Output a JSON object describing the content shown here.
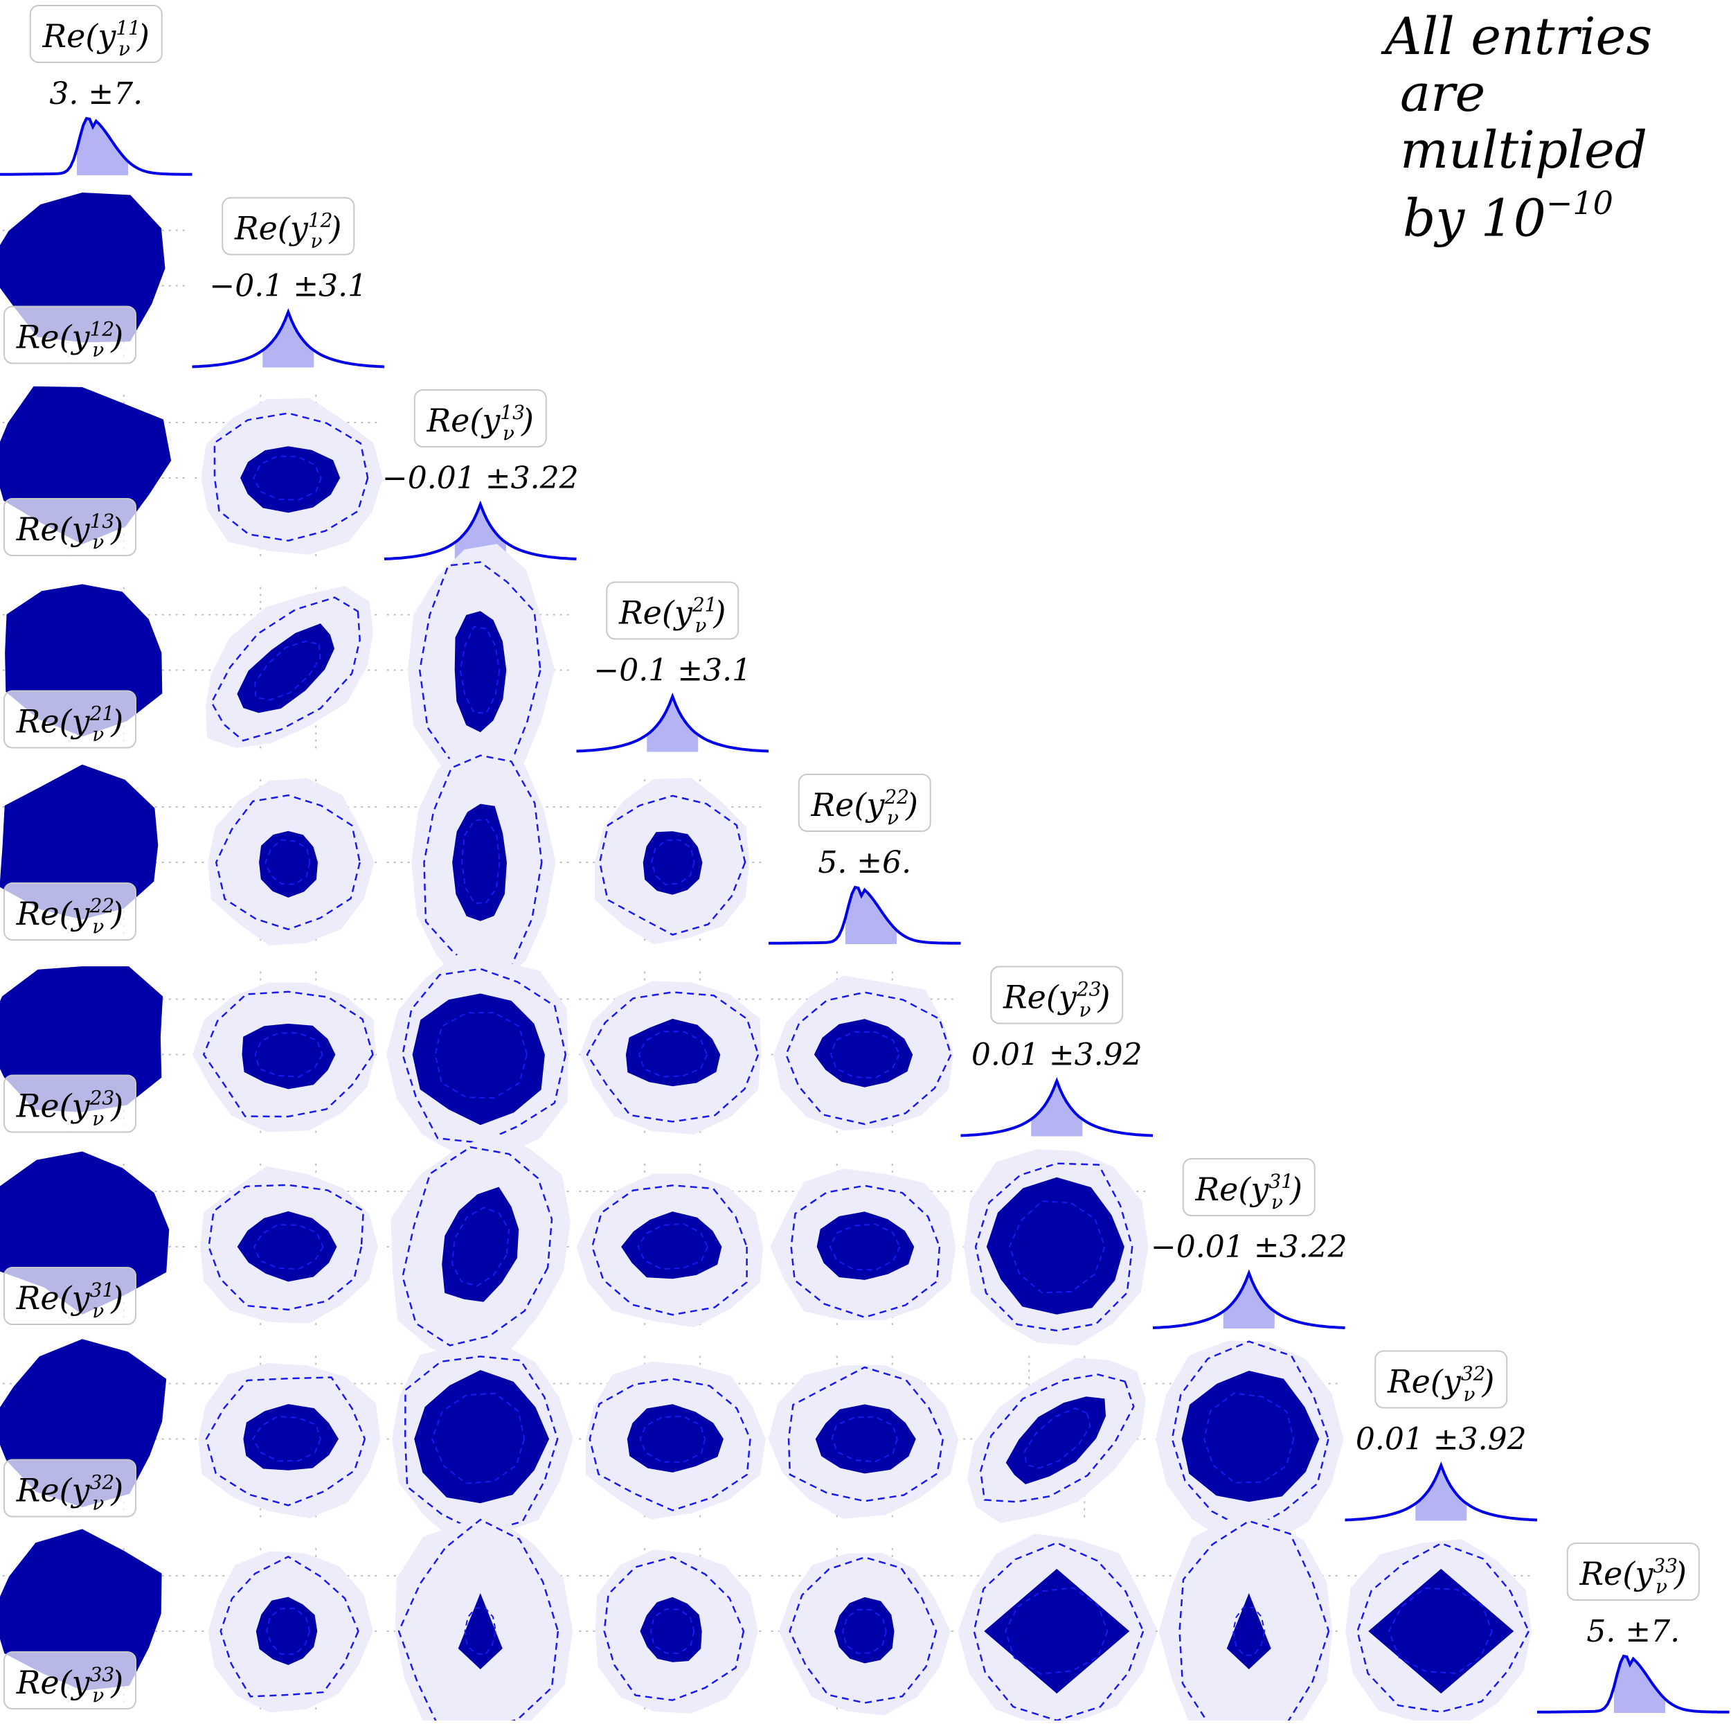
{
  "note": {
    "line1": "All entries",
    "line2": "are multipled",
    "line3_prefix": "by 10",
    "line3_exponent": "−10"
  },
  "chart_data": {
    "type": "corner_plot",
    "title": "",
    "parameters": [
      {
        "label": "Re(y_ν^11)",
        "sub": "ν",
        "sup": "11",
        "summary": "3. ±7.",
        "mean": 3,
        "sigma": 7,
        "skewed": true
      },
      {
        "label": "Re(y_ν^12)",
        "sub": "ν",
        "sup": "12",
        "summary": "−0.1 ±3.1",
        "mean": -0.1,
        "sigma": 3.1,
        "skewed": false
      },
      {
        "label": "Re(y_ν^13)",
        "sub": "ν",
        "sup": "13",
        "summary": "−0.01 ±3.22",
        "mean": -0.01,
        "sigma": 3.22,
        "skewed": false
      },
      {
        "label": "Re(y_ν^21)",
        "sub": "ν",
        "sup": "21",
        "summary": "−0.1 ±3.1",
        "mean": -0.1,
        "sigma": 3.1,
        "skewed": false
      },
      {
        "label": "Re(y_ν^22)",
        "sub": "ν",
        "sup": "22",
        "summary": "5. ±6.",
        "mean": 5,
        "sigma": 6,
        "skewed": true
      },
      {
        "label": "Re(y_ν^23)",
        "sub": "ν",
        "sup": "23",
        "summary": "0.01 ±3.92",
        "mean": 0.01,
        "sigma": 3.92,
        "skewed": false
      },
      {
        "label": "Re(y_ν^31)",
        "sub": "ν",
        "sup": "31",
        "summary": "−0.01 ±3.22",
        "mean": -0.01,
        "sigma": 3.22,
        "skewed": false
      },
      {
        "label": "Re(y_ν^32)",
        "sub": "ν",
        "sup": "32",
        "summary": "0.01 ±3.92",
        "mean": 0.01,
        "sigma": 3.92,
        "skewed": false
      },
      {
        "label": "Re(y_ν^33)",
        "sub": "ν",
        "sup": "33",
        "summary": "5. ±7.",
        "mean": 5,
        "sigma": 7,
        "skewed": true
      }
    ],
    "panels": [
      {
        "row": 1,
        "col": 0,
        "shape": "blob"
      },
      {
        "row": 2,
        "col": 0,
        "shape": "blob"
      },
      {
        "row": 2,
        "col": 1,
        "shape": "ellipse"
      },
      {
        "row": 3,
        "col": 0,
        "shape": "blob"
      },
      {
        "row": 3,
        "col": 1,
        "shape": "diag"
      },
      {
        "row": 3,
        "col": 2,
        "shape": "tall"
      },
      {
        "row": 4,
        "col": 0,
        "shape": "blob"
      },
      {
        "row": 4,
        "col": 1,
        "shape": "small"
      },
      {
        "row": 4,
        "col": 2,
        "shape": "tall"
      },
      {
        "row": 4,
        "col": 3,
        "shape": "small"
      },
      {
        "row": 5,
        "col": 0,
        "shape": "blob"
      },
      {
        "row": 5,
        "col": 1,
        "shape": "ellipse"
      },
      {
        "row": 5,
        "col": 2,
        "shape": "big"
      },
      {
        "row": 5,
        "col": 3,
        "shape": "ellipse"
      },
      {
        "row": 5,
        "col": 4,
        "shape": "ellipse"
      },
      {
        "row": 6,
        "col": 0,
        "shape": "blob"
      },
      {
        "row": 6,
        "col": 1,
        "shape": "ellipse"
      },
      {
        "row": 6,
        "col": 2,
        "shape": "skewed"
      },
      {
        "row": 6,
        "col": 3,
        "shape": "ellipse"
      },
      {
        "row": 6,
        "col": 4,
        "shape": "ellipse"
      },
      {
        "row": 6,
        "col": 5,
        "shape": "big"
      },
      {
        "row": 7,
        "col": 0,
        "shape": "blob"
      },
      {
        "row": 7,
        "col": 1,
        "shape": "ellipse"
      },
      {
        "row": 7,
        "col": 2,
        "shape": "big"
      },
      {
        "row": 7,
        "col": 3,
        "shape": "ellipse"
      },
      {
        "row": 7,
        "col": 4,
        "shape": "ellipse"
      },
      {
        "row": 7,
        "col": 5,
        "shape": "diag"
      },
      {
        "row": 7,
        "col": 6,
        "shape": "big"
      },
      {
        "row": 8,
        "col": 0,
        "shape": "blob"
      },
      {
        "row": 8,
        "col": 1,
        "shape": "small"
      },
      {
        "row": 8,
        "col": 2,
        "shape": "drop"
      },
      {
        "row": 8,
        "col": 3,
        "shape": "small"
      },
      {
        "row": 8,
        "col": 4,
        "shape": "small"
      },
      {
        "row": 8,
        "col": 5,
        "shape": "diamond"
      },
      {
        "row": 8,
        "col": 6,
        "shape": "drop"
      },
      {
        "row": 8,
        "col": 7,
        "shape": "diamond"
      }
    ],
    "colors": {
      "contour_fill": "#0000a8",
      "contour_line": "#1a1af0",
      "hist_line": "#0000e6",
      "hist_fill": "#b4b4f5",
      "halo": "#ececfb",
      "label_border": "#c8c8c8",
      "grid": "#bdbdbd"
    },
    "grid": true
  }
}
